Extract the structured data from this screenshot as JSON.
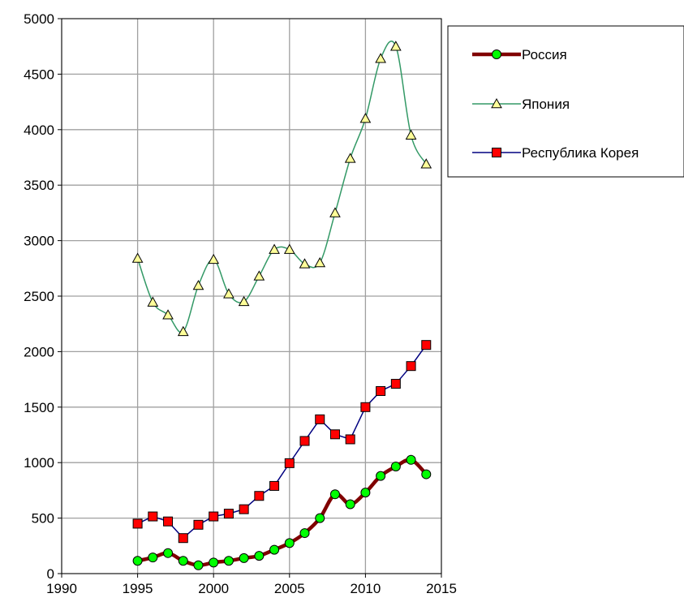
{
  "chart_data": {
    "type": "line",
    "title": "",
    "xlabel": "",
    "ylabel": "",
    "xlim": [
      1990,
      2015
    ],
    "ylim": [
      0,
      5000
    ],
    "x_ticks": [
      1990,
      1995,
      2000,
      2005,
      2010,
      2015
    ],
    "y_ticks": [
      0,
      500,
      1000,
      1500,
      2000,
      2500,
      3000,
      3500,
      4000,
      4500,
      5000
    ],
    "grid": "vertical and horizontal, gray",
    "legend_position": "right",
    "x": [
      1995,
      1996,
      1997,
      1998,
      1999,
      2000,
      2001,
      2002,
      2003,
      2004,
      2005,
      2006,
      2007,
      2008,
      2009,
      2010,
      2011,
      2012,
      2013,
      2014
    ],
    "series": [
      {
        "name": "Россия",
        "color": "#800000",
        "marker": "circle",
        "marker_fill": "#00ff00",
        "values": [
          115,
          145,
          185,
          115,
          75,
          100,
          115,
          140,
          160,
          215,
          275,
          365,
          500,
          715,
          625,
          730,
          880,
          965,
          1025,
          895
        ]
      },
      {
        "name": "Япония",
        "color": "#339966",
        "marker": "triangle",
        "marker_fill": "#ffff99",
        "values": [
          2840,
          2445,
          2330,
          2180,
          2595,
          2830,
          2520,
          2450,
          2680,
          2920,
          2920,
          2790,
          2800,
          3250,
          3740,
          4100,
          4640,
          4750,
          3950,
          3690
        ]
      },
      {
        "name": "Республика Корея",
        "color": "#000080",
        "marker": "square",
        "marker_fill": "#ff0000",
        "values": [
          450,
          515,
          470,
          320,
          440,
          515,
          540,
          580,
          700,
          790,
          995,
          1195,
          1390,
          1255,
          1210,
          1500,
          1645,
          1710,
          1870,
          2060
        ]
      }
    ]
  }
}
